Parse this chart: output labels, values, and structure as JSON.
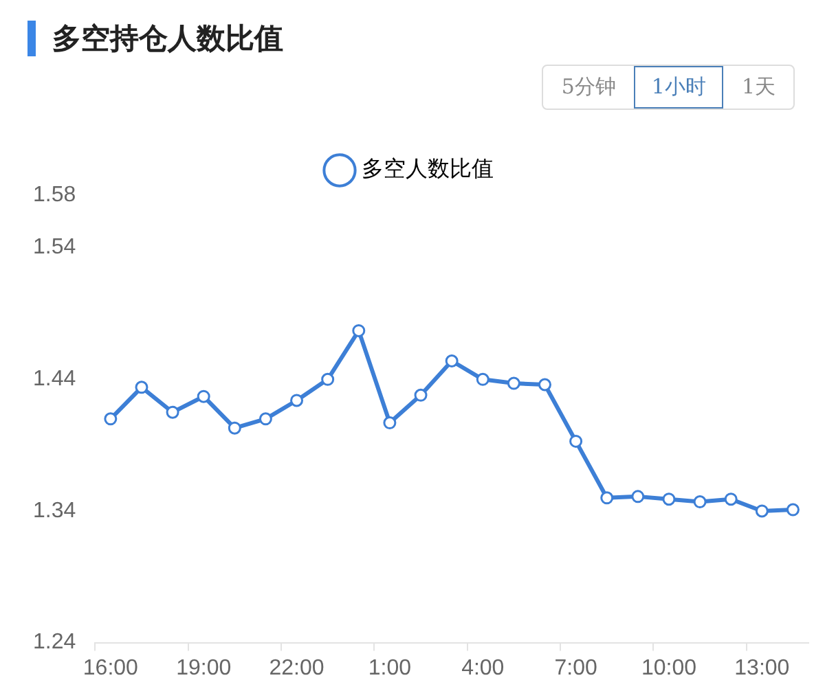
{
  "chart_data": {
    "type": "line",
    "title": "多空持仓人数比值",
    "annotations": [
      "5分钟",
      "1小时",
      "1天"
    ],
    "categories": [
      "16:00",
      null,
      null,
      "19:00",
      null,
      null,
      "22:00",
      null,
      null,
      "1:00",
      null,
      null,
      "4:00",
      null,
      null,
      "7:00",
      null,
      null,
      "10:00",
      null,
      null,
      "13:00",
      null
    ],
    "series": [
      {
        "name": "多空人数比值",
        "color": "#3d7fd6",
        "values": [
          1.41,
          1.434,
          1.415,
          1.427,
          1.403,
          1.41,
          1.424,
          1.44,
          1.477,
          1.407,
          1.428,
          1.454,
          1.44,
          1.437,
          1.436,
          1.393,
          1.35,
          1.351,
          1.349,
          1.347,
          1.349,
          1.34,
          1.341
        ]
      }
    ],
    "ylim": [
      1.24,
      1.58
    ],
    "yticks": [
      1.24,
      1.34,
      1.44,
      1.54,
      1.58
    ],
    "legend": "top",
    "marker": "circle",
    "line_style": "solid",
    "grid": false
  }
}
